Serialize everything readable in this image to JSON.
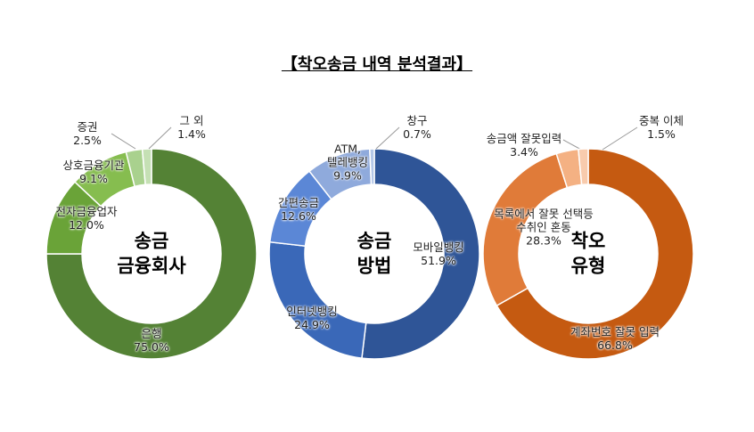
{
  "title": "【착오송금 내역 분석결과】",
  "chart_data": [
    {
      "type": "pie",
      "center_label": "송금\n금융회사",
      "categories": [
        "은행",
        "전자금융업자",
        "상호금융기관",
        "증권",
        "그 외"
      ],
      "values": [
        75.0,
        12.0,
        9.1,
        2.5,
        1.4
      ],
      "value_labels": [
        "75.0%",
        "12.0%",
        "9.1%",
        "2.5%",
        "1.4%"
      ],
      "colors": [
        "#548235",
        "#6aa338",
        "#86bd4f",
        "#a9d18e",
        "#c5e0b4"
      ]
    },
    {
      "type": "pie",
      "center_label": "송금\n방법",
      "categories": [
        "모바일뱅킹",
        "인터넷뱅킹",
        "간편송금",
        "ATM,\n텔레뱅킹",
        "창구"
      ],
      "values": [
        51.9,
        24.9,
        12.6,
        9.9,
        0.7
      ],
      "value_labels": [
        "51.9%",
        "24.9%",
        "12.6%",
        "9.9%",
        "0.7%"
      ],
      "colors": [
        "#2f5597",
        "#3a68b8",
        "#5b87d6",
        "#8faadc",
        "#b4c7e7"
      ]
    },
    {
      "type": "pie",
      "center_label": "착오\n유형",
      "categories": [
        "계좌번호 잘못 입력",
        "목록에서 잘못 선택등\n수취인 혼동",
        "송금액 잘못입력",
        "중복 이체"
      ],
      "values": [
        66.8,
        28.3,
        3.4,
        1.5
      ],
      "value_labels": [
        "66.8%",
        "28.3%",
        "3.4%",
        "1.5%"
      ],
      "colors": [
        "#c55a11",
        "#e07b39",
        "#f4b183",
        "#f8cbad"
      ]
    }
  ]
}
